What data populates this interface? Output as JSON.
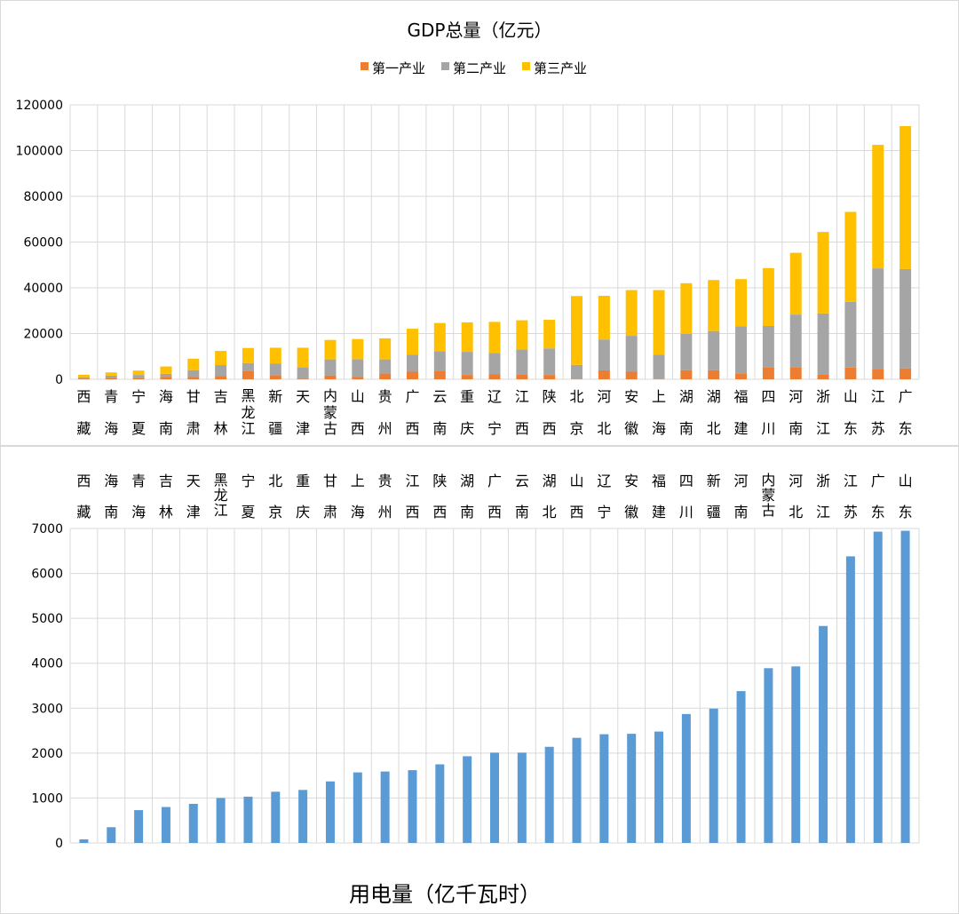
{
  "chart_data": [
    {
      "type": "bar",
      "stacked": true,
      "title": "GDP总量（亿元）",
      "xlabel": "",
      "ylabel": "",
      "ylim": [
        0,
        120000
      ],
      "yticks": [
        0,
        20000,
        40000,
        60000,
        80000,
        100000,
        120000
      ],
      "grid": true,
      "legend_position": "top-center",
      "categories": [
        "西藏",
        "青海",
        "宁夏",
        "海南",
        "甘肃",
        "吉林",
        "黑龙江",
        "新疆",
        "天津",
        "内蒙古",
        "山西",
        "贵州",
        "广西",
        "云南",
        "重庆",
        "辽宁",
        "江西",
        "陕西",
        "北京",
        "河北",
        "安徽",
        "上海",
        "湖南",
        "湖北",
        "福建",
        "四川",
        "河南",
        "浙江",
        "山东",
        "江苏",
        "广东"
      ],
      "category_lines": [
        [
          "西",
          "藏"
        ],
        [
          "青",
          "海"
        ],
        [
          "宁",
          "夏"
        ],
        [
          "海",
          "南"
        ],
        [
          "甘",
          "肃"
        ],
        [
          "吉",
          "林"
        ],
        [
          "黑",
          "龙",
          "江"
        ],
        [
          "新",
          "疆"
        ],
        [
          "天",
          "津"
        ],
        [
          "内",
          "蒙",
          "古"
        ],
        [
          "山",
          "西"
        ],
        [
          "贵",
          "州"
        ],
        [
          "广",
          "西"
        ],
        [
          "云",
          "南"
        ],
        [
          "重",
          "庆"
        ],
        [
          "辽",
          "宁"
        ],
        [
          "江",
          "西"
        ],
        [
          "陕",
          "西"
        ],
        [
          "北",
          "京"
        ],
        [
          "河",
          "北"
        ],
        [
          "安",
          "徽"
        ],
        [
          "上",
          "海"
        ],
        [
          "湖",
          "南"
        ],
        [
          "湖",
          "北"
        ],
        [
          "福",
          "建"
        ],
        [
          "四",
          "川"
        ],
        [
          "河",
          "南"
        ],
        [
          "浙",
          "江"
        ],
        [
          "山",
          "东"
        ],
        [
          "江",
          "苏"
        ],
        [
          "广",
          "东"
        ]
      ],
      "series": [
        {
          "name": "第一产业",
          "color": "#ed7d31",
          "values": [
            200,
            400,
            400,
            1100,
            1000,
            1500,
            3500,
            1800,
            200,
            1700,
            1000,
            2500,
            3300,
            3800,
            1900,
            2300,
            2100,
            1900,
            100,
            3900,
            3300,
            100,
            4000,
            4000,
            2600,
            5200,
            5200,
            2200,
            5100,
            4500,
            4800
          ]
        },
        {
          "name": "第二产业",
          "color": "#a5a5a5",
          "values": [
            700,
            1200,
            1500,
            1300,
            3000,
            4700,
            3600,
            5000,
            5000,
            7000,
            7800,
            6200,
            7500,
            8500,
            10100,
            9200,
            11000,
            11600,
            6200,
            13500,
            15700,
            10600,
            15900,
            17100,
            20600,
            18100,
            23100,
            26600,
            28800,
            44000,
            43400
          ]
        },
        {
          "name": "第三产业",
          "color": "#ffc000",
          "values": [
            1100,
            1400,
            1900,
            3200,
            5000,
            6200,
            6600,
            7000,
            8600,
            8500,
            8800,
            9200,
            11300,
            12300,
            12900,
            13600,
            12700,
            12500,
            30100,
            19100,
            20000,
            28300,
            22100,
            22300,
            20600,
            25300,
            27000,
            35600,
            39300,
            54000,
            62500
          ]
        }
      ]
    },
    {
      "type": "bar",
      "title": "用电量（亿千瓦时）",
      "xlabel": "",
      "ylabel": "",
      "ylim": [
        0,
        7000
      ],
      "yticks": [
        0,
        1000,
        2000,
        3000,
        4000,
        5000,
        6000,
        7000
      ],
      "grid": true,
      "categories": [
        "西藏",
        "海南",
        "青海",
        "吉林",
        "天津",
        "黑龙江",
        "宁夏",
        "北京",
        "重庆",
        "甘肃",
        "上海",
        "贵州",
        "江西",
        "陕西",
        "湖南",
        "广西",
        "云南",
        "湖北",
        "山西",
        "辽宁",
        "安徽",
        "福建",
        "四川",
        "新疆",
        "河南",
        "内蒙古",
        "河北",
        "浙江",
        "江苏",
        "广东",
        "山东"
      ],
      "category_lines": [
        [
          "西",
          "藏"
        ],
        [
          "海",
          "南"
        ],
        [
          "青",
          "海"
        ],
        [
          "吉",
          "林"
        ],
        [
          "天",
          "津"
        ],
        [
          "黑",
          "龙",
          "江"
        ],
        [
          "宁",
          "夏"
        ],
        [
          "北",
          "京"
        ],
        [
          "重",
          "庆"
        ],
        [
          "甘",
          "肃"
        ],
        [
          "上",
          "海"
        ],
        [
          "贵",
          "州"
        ],
        [
          "江",
          "西"
        ],
        [
          "陕",
          "西"
        ],
        [
          "湖",
          "南"
        ],
        [
          "广",
          "西"
        ],
        [
          "云",
          "南"
        ],
        [
          "湖",
          "北"
        ],
        [
          "山",
          "西"
        ],
        [
          "辽",
          "宁"
        ],
        [
          "安",
          "徽"
        ],
        [
          "福",
          "建"
        ],
        [
          "四",
          "川"
        ],
        [
          "新",
          "疆"
        ],
        [
          "河",
          "南"
        ],
        [
          "内",
          "蒙",
          "古"
        ],
        [
          "河",
          "北"
        ],
        [
          "浙",
          "江"
        ],
        [
          "江",
          "苏"
        ],
        [
          "广",
          "东"
        ],
        [
          "山",
          "东"
        ]
      ],
      "series": [
        {
          "name": "用电量",
          "color": "#5b9bd5",
          "values": [
            80,
            350,
            730,
            800,
            870,
            1000,
            1030,
            1140,
            1180,
            1370,
            1570,
            1590,
            1620,
            1750,
            1930,
            2010,
            2010,
            2140,
            2340,
            2420,
            2430,
            2480,
            2870,
            2990,
            3380,
            3890,
            3930,
            4830,
            6380,
            6930,
            6950
          ]
        }
      ]
    }
  ]
}
